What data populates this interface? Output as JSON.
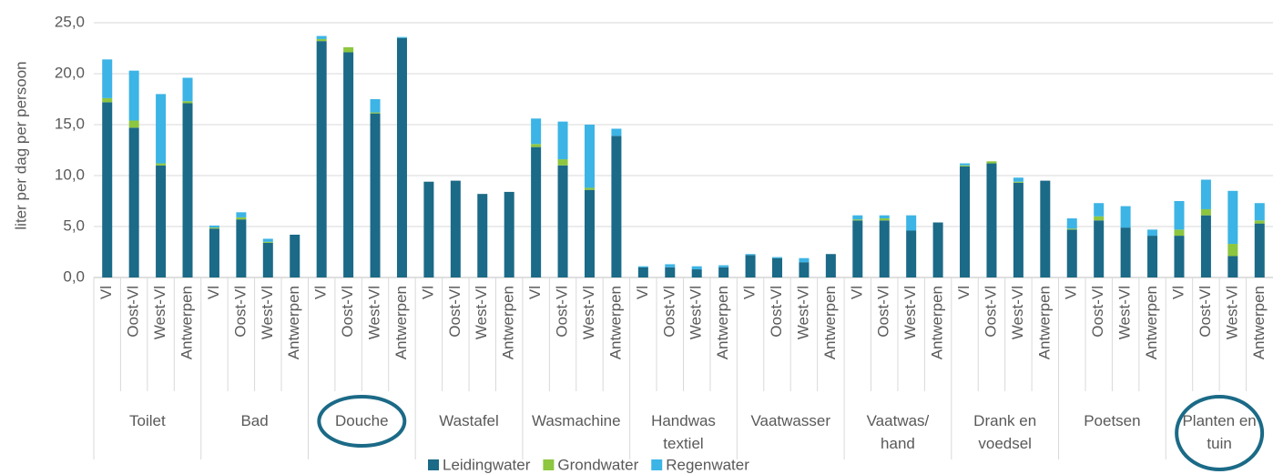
{
  "chart_data": {
    "type": "stacked_bar",
    "y_label": "liter per dag per persoon",
    "groups": [
      "Toilet",
      "Bad",
      "Douche",
      "Wastafel",
      "Wasmachine",
      "Handwas textiel",
      "Vaatwasser",
      "Vaatwas/ hand",
      "Drank en voedsel",
      "Poetsen",
      "Planten en tuin"
    ],
    "subcategories": [
      "Vl",
      "Oost-Vl",
      "West-Vl",
      "Antwerpen"
    ],
    "ylim": [
      0,
      25
    ],
    "yticks": [
      {
        "value": 0,
        "label": "0,0"
      },
      {
        "value": 5,
        "label": "5,0"
      },
      {
        "value": 10,
        "label": "10,0"
      },
      {
        "value": 15,
        "label": "15,0"
      },
      {
        "value": 20,
        "label": "20,0"
      },
      {
        "value": 25,
        "label": "25,0"
      }
    ],
    "grid": true,
    "highlighted_groups": [
      2,
      10
    ],
    "series": [
      {
        "name": "Leidingwater",
        "color": "#1b6a87",
        "values": [
          17.2,
          14.7,
          11.0,
          17.1,
          4.8,
          5.7,
          3.4,
          4.2,
          23.2,
          22.1,
          16.1,
          23.5,
          9.4,
          9.5,
          8.2,
          8.4,
          12.8,
          11.0,
          8.6,
          13.9,
          1.0,
          1.0,
          0.8,
          1.0,
          2.2,
          1.9,
          1.5,
          2.3,
          5.6,
          5.6,
          4.6,
          5.4,
          10.9,
          11.2,
          9.3,
          9.5,
          4.7,
          5.6,
          4.9,
          4.1,
          4.1,
          6.1,
          2.1,
          5.3
        ]
      },
      {
        "name": "Grondwater",
        "color": "#8dc63f",
        "values": [
          0.4,
          0.7,
          0.2,
          0.2,
          0.1,
          0.2,
          0.1,
          0,
          0.2,
          0.5,
          0.1,
          0,
          0,
          0,
          0,
          0,
          0.3,
          0.6,
          0.2,
          0,
          0,
          0,
          0,
          0,
          0,
          0,
          0,
          0,
          0.1,
          0.2,
          0,
          0,
          0.1,
          0.2,
          0.1,
          0,
          0.1,
          0.4,
          0,
          0,
          0.6,
          0.6,
          1.2,
          0.3
        ]
      },
      {
        "name": "Regenwater",
        "color": "#3cb4e5",
        "values": [
          3.8,
          4.9,
          6.8,
          2.3,
          0.2,
          0.5,
          0.3,
          0,
          0.3,
          0,
          1.3,
          0.1,
          0,
          0,
          0,
          0,
          2.5,
          3.7,
          6.2,
          0.7,
          0.1,
          0.3,
          0.3,
          0.2,
          0.1,
          0.1,
          0.4,
          0,
          0.4,
          0.3,
          1.5,
          0,
          0.2,
          0,
          0.4,
          0,
          1.0,
          1.3,
          2.1,
          0.6,
          2.8,
          2.9,
          5.2,
          1.7
        ]
      }
    ]
  }
}
